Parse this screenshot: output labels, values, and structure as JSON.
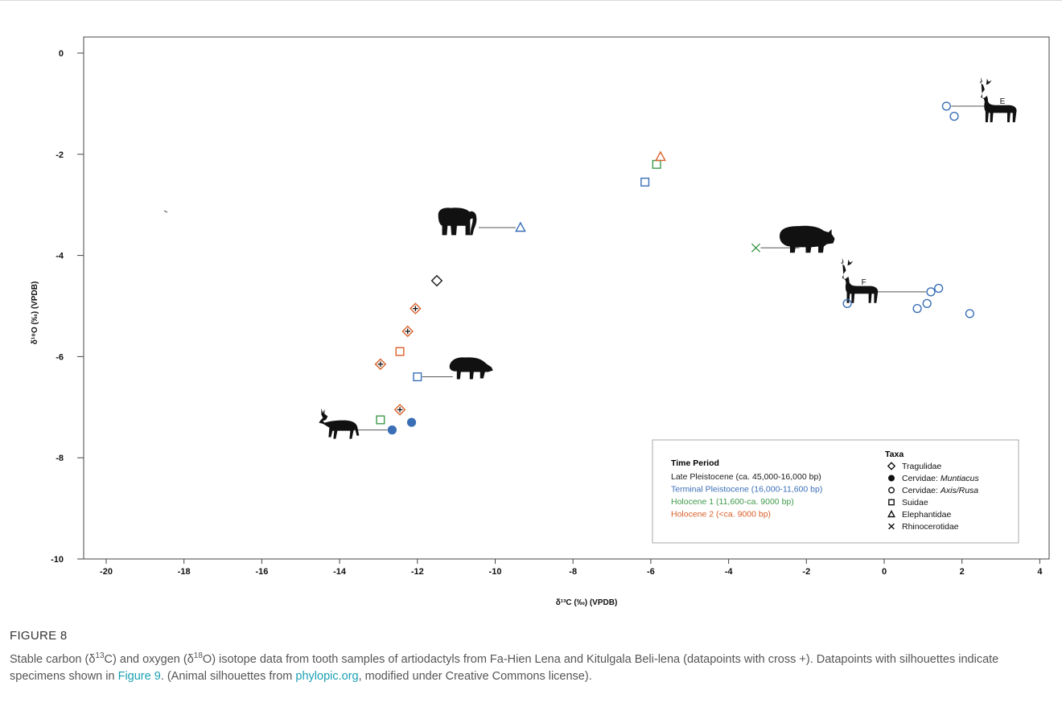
{
  "figure_label": "FIGURE 8",
  "caption": {
    "parts": [
      {
        "text": "Stable carbon (δ"
      },
      {
        "text": "13",
        "sup": true
      },
      {
        "text": "C) and oxygen (δ"
      },
      {
        "text": "18",
        "sup": true
      },
      {
        "text": "O) isotope data from tooth samples of artiodactyls from Fa-Hien Lena and Kitulgala Beli-lena (datapoints with cross +). Datapoints with silhouettes indicate specimens shown in "
      },
      {
        "text": "Figure 9",
        "link": true
      },
      {
        "text": ". (Animal silhouettes from "
      },
      {
        "text": "phylopic.org",
        "link": true
      },
      {
        "text": ", modified under Creative Commons license)."
      }
    ]
  },
  "chart_data": {
    "type": "scatter",
    "title": "",
    "xlabel": "δ¹³C (‰) (VPDB)",
    "ylabel": "δ¹⁸O (‰) (VPDB)",
    "xlim": [
      -20.6,
      4.3
    ],
    "ylim": [
      -10,
      0.6
    ],
    "xticks": [
      -20,
      -18,
      -16,
      -14,
      -12,
      -10,
      -8,
      -6,
      -4,
      -2,
      0,
      2,
      4
    ],
    "yticks": [
      0,
      -2,
      -4,
      -6,
      -8,
      -10
    ],
    "grid": false,
    "legend_placement": "bottom-right",
    "colors": {
      "late_pleistocene": "#1a1a1a",
      "terminal_pleistocene": "#3a6fb7",
      "holocene_1": "#3f9a4a",
      "holocene_2": "#d9602a"
    },
    "legend": {
      "time_title": "Time Period",
      "time_periods": [
        {
          "label": "Late Pleistocene (ca. 45,000-16,000 bp)",
          "color": "#1a1a1a"
        },
        {
          "label": "Terminal Pleistocene (16,000-11,600 bp)",
          "color": "#3a6fb7"
        },
        {
          "label": "Holocene 1 (11,600-ca. 9000 bp)",
          "color": "#3f9a4a"
        },
        {
          "label": "Holocene 2 (<ca. 9000 bp)",
          "color": "#d9602a"
        }
      ],
      "taxa_title": "Taxa",
      "taxa": [
        {
          "symbol": "diamond",
          "parts": [
            {
              "text": "Tragulidae"
            }
          ]
        },
        {
          "symbol": "filled-circle",
          "parts": [
            {
              "text": "Cervidae: "
            },
            {
              "text": "Muntiacus",
              "italic": true
            }
          ]
        },
        {
          "symbol": "circle",
          "parts": [
            {
              "text": "Cervidae: "
            },
            {
              "text": "Axis/Rusa",
              "italic": true
            }
          ]
        },
        {
          "symbol": "square",
          "parts": [
            {
              "text": "Suidae"
            }
          ]
        },
        {
          "symbol": "triangle",
          "parts": [
            {
              "text": "Elephantidae"
            }
          ]
        },
        {
          "symbol": "x",
          "parts": [
            {
              "text": "Rhinocerotidae"
            }
          ]
        }
      ]
    },
    "points": [
      {
        "x": -11.5,
        "y": -4.5,
        "taxon": "diamond",
        "period": "late_pleistocene",
        "cross": false
      },
      {
        "x": -12.05,
        "y": -5.05,
        "taxon": "diamond",
        "period": "holocene_2",
        "cross": true
      },
      {
        "x": -12.25,
        "y": -5.5,
        "taxon": "diamond",
        "period": "holocene_2",
        "cross": true
      },
      {
        "x": -12.95,
        "y": -6.15,
        "taxon": "diamond",
        "period": "holocene_2",
        "cross": true
      },
      {
        "x": -12.45,
        "y": -7.05,
        "taxon": "diamond",
        "period": "holocene_2",
        "cross": true
      },
      {
        "x": -12.45,
        "y": -5.9,
        "taxon": "square",
        "period": "holocene_2",
        "cross": false
      },
      {
        "x": -12.0,
        "y": -6.4,
        "taxon": "square",
        "period": "terminal_pleistocene",
        "cross": false,
        "silhouette": "boar"
      },
      {
        "x": -12.95,
        "y": -7.25,
        "taxon": "square",
        "period": "holocene_1",
        "cross": false
      },
      {
        "x": -12.65,
        "y": -7.45,
        "taxon": "filled-circle",
        "period": "terminal_pleistocene",
        "cross": false,
        "silhouette": "muntjac"
      },
      {
        "x": -12.15,
        "y": -7.3,
        "taxon": "filled-circle",
        "period": "terminal_pleistocene",
        "cross": false
      },
      {
        "x": -9.35,
        "y": -3.45,
        "taxon": "triangle",
        "period": "terminal_pleistocene",
        "cross": false,
        "silhouette": "elephant"
      },
      {
        "x": -6.15,
        "y": -2.55,
        "taxon": "square",
        "period": "terminal_pleistocene",
        "cross": false
      },
      {
        "x": -5.85,
        "y": -2.2,
        "taxon": "square",
        "period": "holocene_1",
        "cross": false
      },
      {
        "x": -5.75,
        "y": -2.05,
        "taxon": "triangle",
        "period": "holocene_2",
        "cross": false
      },
      {
        "x": -3.3,
        "y": -3.85,
        "taxon": "x",
        "period": "holocene_1",
        "cross": false,
        "silhouette": "rhino"
      },
      {
        "x": 1.6,
        "y": -1.05,
        "taxon": "circle",
        "period": "terminal_pleistocene",
        "cross": false,
        "silhouette": "deer-E"
      },
      {
        "x": 1.8,
        "y": -1.25,
        "taxon": "circle",
        "period": "terminal_pleistocene",
        "cross": false
      },
      {
        "x": -0.95,
        "y": -4.95,
        "taxon": "circle",
        "period": "terminal_pleistocene",
        "cross": false
      },
      {
        "x": 0.85,
        "y": -5.05,
        "taxon": "circle",
        "period": "terminal_pleistocene",
        "cross": false
      },
      {
        "x": 1.1,
        "y": -4.95,
        "taxon": "circle",
        "period": "terminal_pleistocene",
        "cross": false
      },
      {
        "x": 1.2,
        "y": -4.72,
        "taxon": "circle",
        "period": "terminal_pleistocene",
        "cross": false,
        "silhouette": "deer-F"
      },
      {
        "x": 1.4,
        "y": -4.65,
        "taxon": "circle",
        "period": "terminal_pleistocene",
        "cross": false
      },
      {
        "x": 2.2,
        "y": -5.15,
        "taxon": "circle",
        "period": "terminal_pleistocene",
        "cross": false
      }
    ],
    "silhouette_labels": {
      "deer-E": "E",
      "deer-F": "F"
    }
  }
}
